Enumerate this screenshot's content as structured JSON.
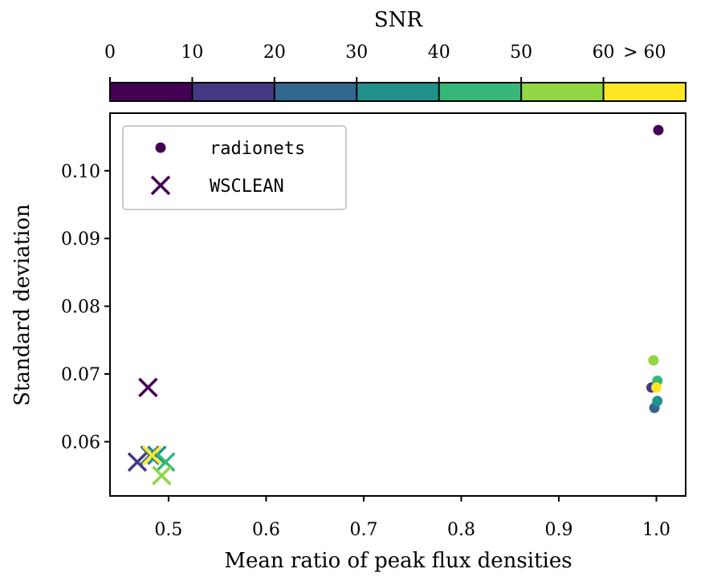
{
  "chart_data": {
    "type": "scatter",
    "title": "",
    "xlabel": "Mean ratio of peak flux densities",
    "ylabel": "Standard deviation",
    "xlim": [
      0.44,
      1.03
    ],
    "ylim": [
      0.052,
      0.1085
    ],
    "xticks": [
      "0.5",
      "0.6",
      "0.7",
      "0.8",
      "0.9",
      "1.0"
    ],
    "yticks": [
      "0.06",
      "0.07",
      "0.08",
      "0.09",
      "0.10"
    ],
    "grid": false,
    "legend_position": "top-left",
    "colorbar": {
      "label": "SNR",
      "orientation": "horizontal",
      "position": "top",
      "tick_labels": [
        "0",
        "10",
        "20",
        "30",
        "40",
        "50",
        "60",
        "> 60"
      ],
      "bins": [
        {
          "range": "0-10",
          "color": "#440154"
        },
        {
          "range": "10-20",
          "color": "#443983"
        },
        {
          "range": "20-30",
          "color": "#31688e"
        },
        {
          "range": "30-40",
          "color": "#21918c"
        },
        {
          "range": "40-50",
          "color": "#35b779"
        },
        {
          "range": "50-60",
          "color": "#90d743"
        },
        {
          "range": "> 60",
          "color": "#fde725"
        }
      ]
    },
    "series": [
      {
        "name": "radionets",
        "marker": "circle",
        "points": [
          {
            "x": 1.002,
            "y": 0.106,
            "snr_bin": 0
          },
          {
            "x": 0.995,
            "y": 0.068,
            "snr_bin": 1
          },
          {
            "x": 0.998,
            "y": 0.065,
            "snr_bin": 2
          },
          {
            "x": 1.001,
            "y": 0.066,
            "snr_bin": 3
          },
          {
            "x": 1.001,
            "y": 0.069,
            "snr_bin": 4
          },
          {
            "x": 0.997,
            "y": 0.072,
            "snr_bin": 5
          },
          {
            "x": 1.0,
            "y": 0.068,
            "snr_bin": 6
          }
        ]
      },
      {
        "name": "WSCLEAN",
        "marker": "x",
        "points": [
          {
            "x": 0.479,
            "y": 0.068,
            "snr_bin": 0
          },
          {
            "x": 0.468,
            "y": 0.057,
            "snr_bin": 1
          },
          {
            "x": 0.481,
            "y": 0.058,
            "snr_bin": 2
          },
          {
            "x": 0.488,
            "y": 0.058,
            "snr_bin": 3
          },
          {
            "x": 0.497,
            "y": 0.057,
            "snr_bin": 4
          },
          {
            "x": 0.493,
            "y": 0.055,
            "snr_bin": 5
          },
          {
            "x": 0.483,
            "y": 0.058,
            "snr_bin": 6
          }
        ]
      }
    ]
  }
}
